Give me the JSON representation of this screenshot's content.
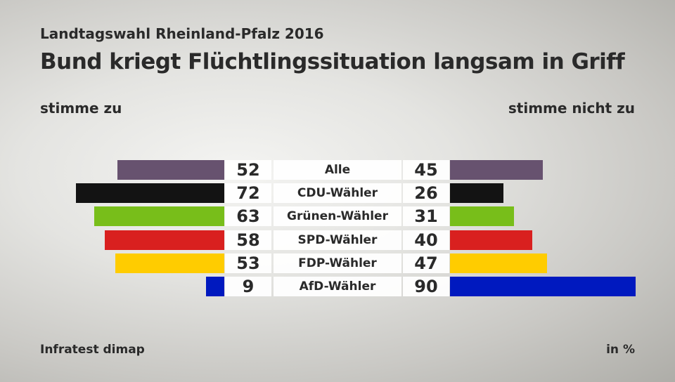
{
  "chart_data": {
    "type": "bar",
    "title": "Bund kriegt Flüchtlingssituation langsam in Griff",
    "subtitle": "Landtagswahl Rheinland-Pfalz 2016",
    "left_label": "stimme zu",
    "right_label": "stimme nicht zu",
    "source": "Infratest dimap",
    "unit": "in %",
    "categories": [
      "Alle",
      "CDU-Wähler",
      "Grünen-Wähler",
      "SPD-Wähler",
      "FDP-Wähler",
      "AfD-Wähler"
    ],
    "colors": [
      "#67526f",
      "#131313",
      "#78be1a",
      "#d9201f",
      "#ffcc00",
      "#0019bf"
    ],
    "series": [
      {
        "name": "stimme zu",
        "values": [
          52,
          72,
          63,
          58,
          53,
          9
        ]
      },
      {
        "name": "stimme nicht zu",
        "values": [
          45,
          26,
          31,
          40,
          47,
          90
        ]
      }
    ]
  }
}
